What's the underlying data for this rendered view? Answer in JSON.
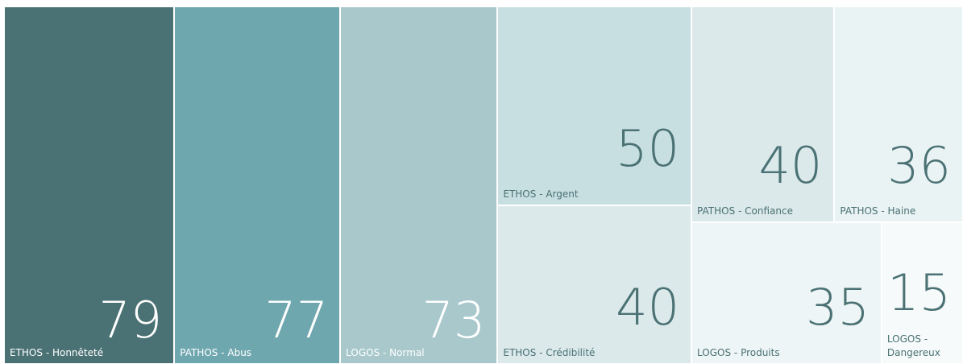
{
  "chart_data": {
    "type": "treemap",
    "categories": [
      "ETHOS - Honnêteté",
      "PATHOS - Abus",
      "LOGOS - Normal",
      "ETHOS - Argent",
      "PATHOS - Confiance",
      "ETHOS - Crédibilité",
      "PATHOS - Haine",
      "LOGOS - Produits",
      "LOGOS - Dangereux"
    ],
    "values": [
      79,
      77,
      73,
      50,
      40,
      40,
      36,
      35,
      15
    ],
    "colors": [
      "#4a7173",
      "#6fa7af",
      "#a8c8cc",
      "#c8dfe2",
      "#dbe9eb",
      "#dbe9eb",
      "#eaf3f4",
      "#eef5f6",
      "#f6fafa"
    ]
  }
}
